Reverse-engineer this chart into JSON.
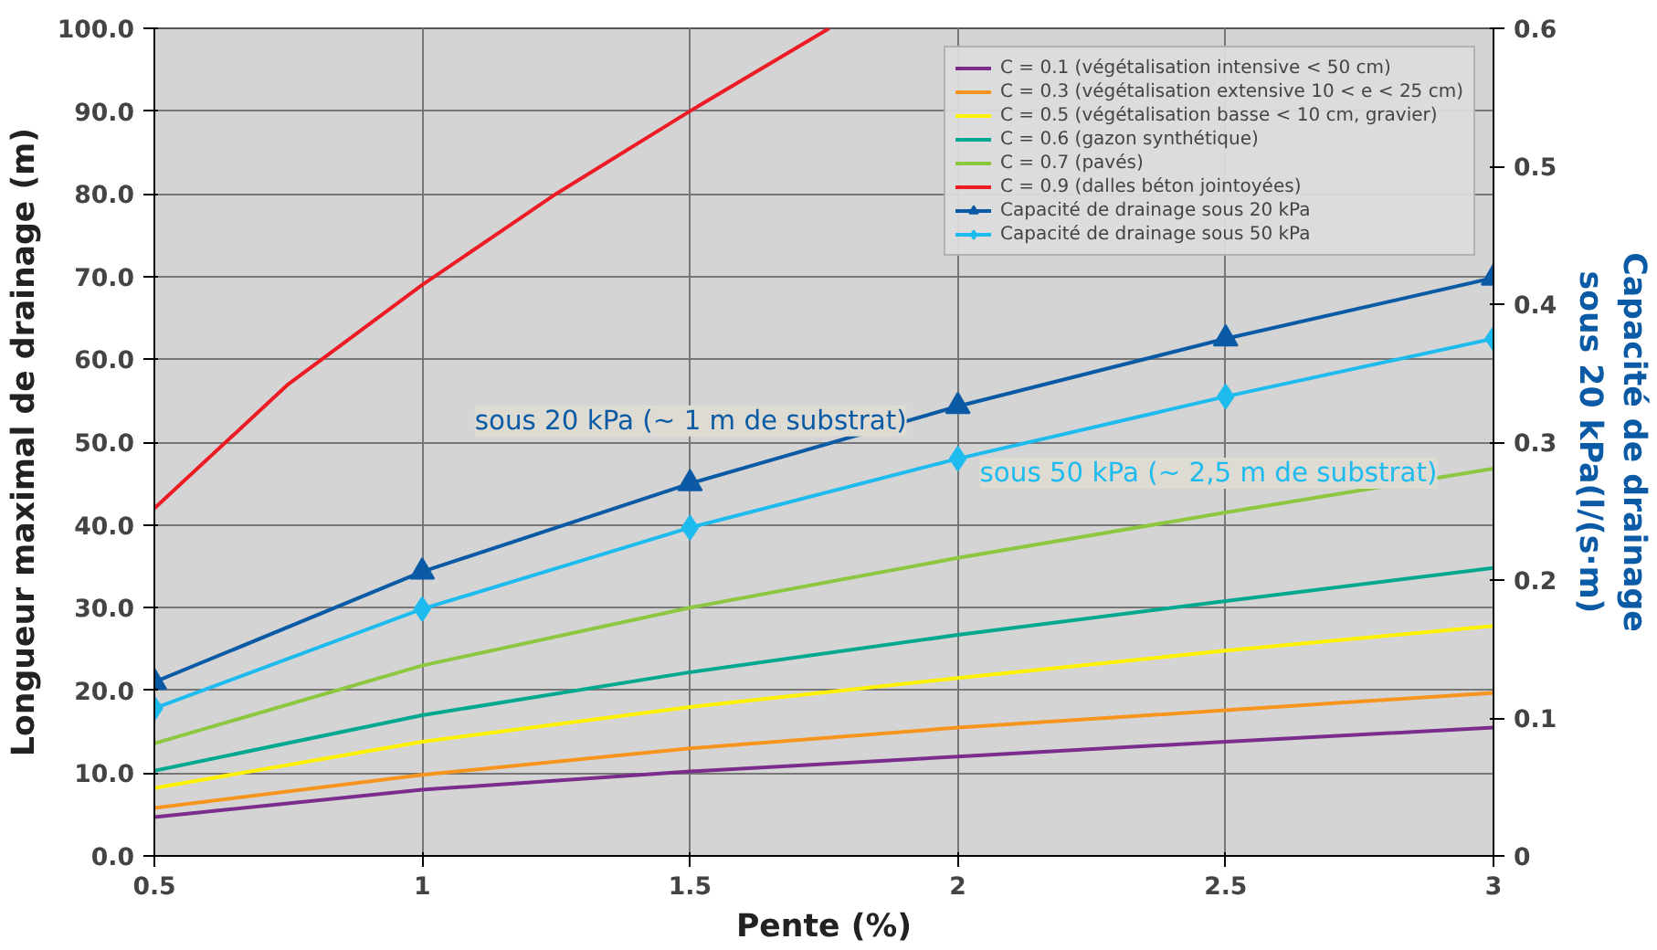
{
  "chart_data": {
    "type": "line",
    "xlabel": "Pente (%)",
    "ylabel": "Longueur maximal de drainage (m)",
    "y2label": "Capacité de drainage\nsous 20 kPa(l/(s·m)",
    "x": [
      0.5,
      1,
      1.5,
      2,
      2.5,
      3
    ],
    "xlim": [
      0.5,
      3
    ],
    "xticks": [
      0.5,
      1,
      1.5,
      2,
      2.5,
      3
    ],
    "ylim": [
      0,
      100
    ],
    "yticks": [
      {
        "value": 0,
        "label": "0.0"
      },
      {
        "value": 10,
        "label": "10.0"
      },
      {
        "value": 20,
        "label": "20.0"
      },
      {
        "value": 30,
        "label": "30.0"
      },
      {
        "value": 40,
        "label": "40.0"
      },
      {
        "value": 50,
        "label": "50.0"
      },
      {
        "value": 60,
        "label": "60.0"
      },
      {
        "value": 70,
        "label": "70.0"
      },
      {
        "value": 80,
        "label": "80.0"
      },
      {
        "value": 90,
        "label": "90.0"
      },
      {
        "value": 100,
        "label": "100.0"
      }
    ],
    "y2lim": [
      0,
      0.6
    ],
    "y2ticks": [
      0,
      0.1,
      0.2,
      0.3,
      0.4,
      0.5,
      0.6
    ],
    "grid": true,
    "legend": "top right",
    "marker": "none",
    "series": [
      {
        "name": "C = 0.1 (végétalisation intensive < 50 cm)",
        "color": "#7b2d8e",
        "values": [
          4.7,
          8.0,
          10.2,
          12.0,
          13.8,
          15.5
        ]
      },
      {
        "name": "C = 0.3 (végétalisation extensive 10 < e < 25 cm)",
        "color": "#f7941d",
        "values": [
          5.8,
          9.8,
          13.0,
          15.5,
          17.6,
          19.7
        ]
      },
      {
        "name": "C = 0.5 (végétalisation basse < 10 cm, gravier)",
        "color": "#fff200",
        "values": [
          8.2,
          13.8,
          18.0,
          21.5,
          24.8,
          27.8
        ]
      },
      {
        "name": "C = 0.6 (gazon synthétique)",
        "color": "#00a88f",
        "values": [
          10.3,
          17.0,
          22.2,
          26.7,
          30.8,
          34.8
        ]
      },
      {
        "name": "C = 0.7 (pavés)",
        "color": "#8dc63f",
        "values": [
          13.6,
          23.0,
          30.0,
          36.0,
          41.5,
          46.8
        ]
      },
      {
        "name": "C = 0.9 (dalles béton jointoyées)",
        "color": "#ed1c24",
        "x": [
          0.5,
          0.75,
          1,
          1.25,
          1.5,
          1.76
        ],
        "values": [
          42,
          57,
          69,
          80,
          90,
          100
        ]
      },
      {
        "name": "Capacité de drainage sous 20 kPa",
        "color": "#0a5aa5",
        "axis": "y2",
        "marker": "triangle",
        "values": [
          0.126,
          0.206,
          0.27,
          0.326,
          0.375,
          0.419
        ]
      },
      {
        "name": "Capacité de drainage sous 50 kPa",
        "color": "#1ebbee",
        "axis": "y2",
        "marker": "diamond",
        "values": [
          0.107,
          0.179,
          0.238,
          0.288,
          0.333,
          0.375
        ]
      }
    ],
    "annotations": [
      "sous 20 kPa (~ 1 m de substrat)",
      "sous 50 kPa (~ 2,5 m de substrat)"
    ]
  }
}
